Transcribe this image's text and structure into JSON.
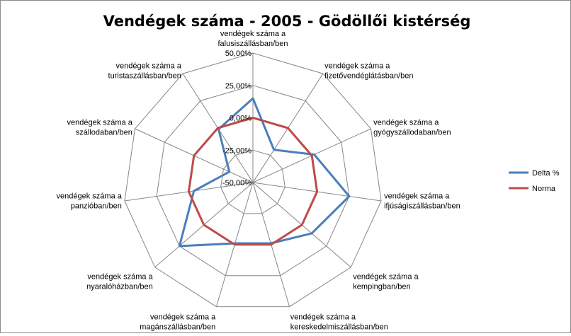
{
  "chart_data": {
    "type": "radar",
    "title": "Vendégek száma - 2005 - Gödöllői kistérség",
    "categories": [
      [
        "vendégek száma a",
        "falusiszállásban/ben"
      ],
      [
        "vendégek száma a",
        "fizetővendéglátásban/ben"
      ],
      [
        "vendégek száma a",
        "gyógyszállodaban/ben"
      ],
      [
        "vendégek száma a",
        "ifjúságiszállásban/ben"
      ],
      [
        "vendégek száma a",
        "kempingban/ben"
      ],
      [
        "vendégek száma a",
        "kereskedelmiszállásban/ben"
      ],
      [
        "vendégek száma a",
        "magánszállásban/ben"
      ],
      [
        "vendégek száma a",
        "nyaralóházban/ben"
      ],
      [
        "vendégek száma a",
        "panzióban/ben"
      ],
      [
        "vendégek száma a",
        "szállodaban/ben"
      ],
      [
        "vendégek száma a",
        "turistaszállásban/ben"
      ]
    ],
    "tick_labels": [
      "-50,00%",
      "-25,00%",
      "0,00%",
      "25,00%",
      "50,00%"
    ],
    "rmin": -50,
    "rmax": 50,
    "ring_step": 25,
    "series": [
      {
        "name": "Delta %",
        "color": "#4a7ebb",
        "values": [
          15,
          -20,
          2,
          25,
          10,
          -1,
          -1,
          25,
          -4,
          -30,
          -1
        ]
      },
      {
        "name": "Norma",
        "color": "#be4b48",
        "values": [
          0,
          0,
          0,
          0,
          0,
          0,
          0,
          0,
          0,
          0,
          0
        ]
      }
    ],
    "legend": "right",
    "grid": true
  }
}
